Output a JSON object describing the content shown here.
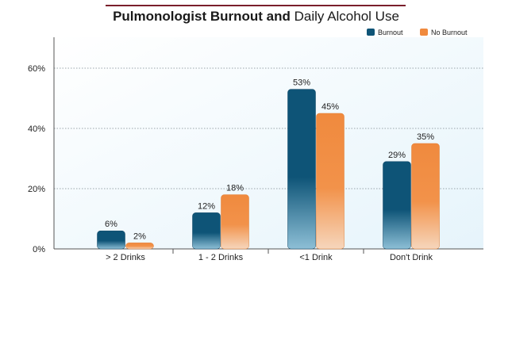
{
  "chart_data": {
    "type": "bar",
    "title_bold": "Pulmonologist Burnout and",
    "title_regular": "Daily Alcohol Use",
    "categories": [
      "> 2 Drinks",
      "1 - 2 Drinks",
      "<1 Drink",
      "Don't Drink"
    ],
    "series": [
      {
        "name": "Burnout",
        "color": "#0e5477",
        "values": [
          6,
          12,
          53,
          29
        ],
        "labels": [
          "6%",
          "12%",
          "53%",
          "29%"
        ]
      },
      {
        "name": "No Burnout",
        "color": "#f08a3e",
        "values": [
          2,
          18,
          45,
          35
        ],
        "labels": [
          "2%",
          "18%",
          "45%",
          "35%"
        ]
      }
    ],
    "ylim": [
      0,
      70
    ],
    "yticks": [
      0,
      20,
      40,
      60
    ],
    "ytick_labels": [
      "0%",
      "20%",
      "40%",
      "60%"
    ],
    "grid": true,
    "legend_position": "top-right"
  }
}
